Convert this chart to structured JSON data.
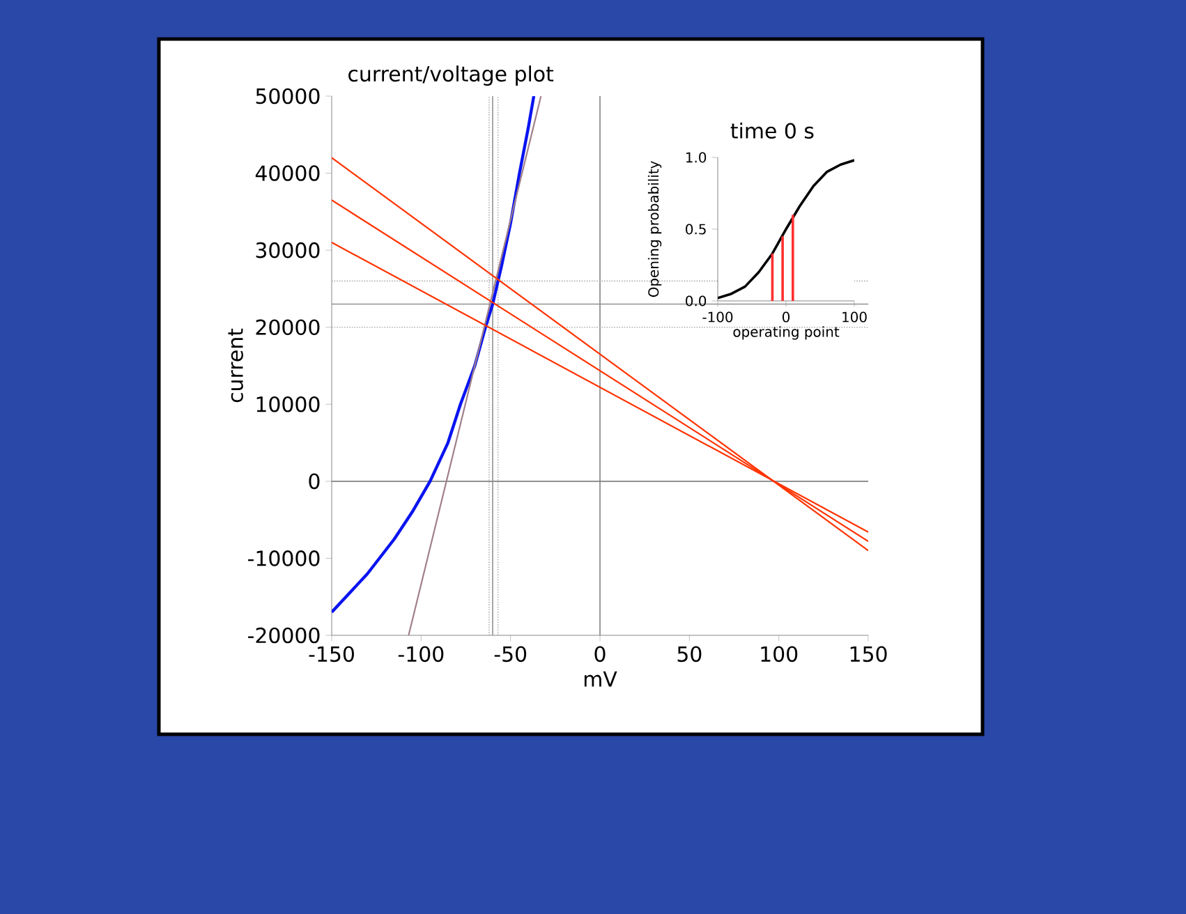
{
  "chart_data": [
    {
      "type": "line",
      "title": "current/voltage plot",
      "xlabel": "mV",
      "ylabel": "current",
      "xlim": [
        -150,
        150
      ],
      "ylim": [
        -20000,
        50000
      ],
      "xticks": [
        -150,
        -100,
        -50,
        0,
        50,
        100,
        150
      ],
      "yticks": [
        -20000,
        -10000,
        0,
        10000,
        20000,
        30000,
        40000,
        50000
      ],
      "series": [
        {
          "color": "#0a14f0",
          "x": [
            -150,
            -130,
            -115,
            -105,
            -95,
            -85,
            -78,
            -70,
            -64,
            -60,
            -55,
            -50,
            -45,
            -40,
            -37
          ],
          "values": [
            -17000,
            -12000,
            -7500,
            -4000,
            0,
            5000,
            10000,
            15000,
            20000,
            23000,
            28000,
            33500,
            40000,
            46000,
            50000
          ]
        },
        {
          "color": "#a08088",
          "x": [
            -107,
            -33
          ],
          "values": [
            -20000,
            50000
          ]
        },
        {
          "color": "#ff3300",
          "x": [
            -150,
            150
          ],
          "values": [
            42000,
            -9000
          ]
        },
        {
          "color": "#ff3300",
          "x": [
            -150,
            150
          ],
          "values": [
            36500,
            -7800
          ]
        },
        {
          "color": "#ff3300",
          "x": [
            -150,
            150
          ],
          "values": [
            31000,
            -6600
          ]
        }
      ],
      "ref_lines": [
        {
          "axis": "x",
          "value": 0,
          "color": "#808080",
          "line_style": "solid"
        },
        {
          "axis": "y",
          "value": 0,
          "color": "#808080",
          "line_style": "solid"
        },
        {
          "axis": "x",
          "value": -60,
          "color": "#909090",
          "line_style": "solid"
        },
        {
          "axis": "y",
          "value": 23000,
          "color": "#909090",
          "line_style": "solid"
        },
        {
          "axis": "x",
          "value": -62,
          "color": "#b0b0b0",
          "line_style": "dotted"
        },
        {
          "axis": "x",
          "value": -57,
          "color": "#b0b0b0",
          "line_style": "dotted"
        },
        {
          "axis": "y",
          "value": 26000,
          "color": "#b0b0b0",
          "line_style": "dotted"
        },
        {
          "axis": "y",
          "value": 20000,
          "color": "#b0b0b0",
          "line_style": "dotted"
        }
      ]
    },
    {
      "type": "line",
      "title": "time 0 s",
      "xlabel": "operating point",
      "ylabel": "Opening probability",
      "xlim": [
        -100,
        100
      ],
      "ylim": [
        0,
        1
      ],
      "xticks": [
        -100,
        0,
        100
      ],
      "yticks": [
        {
          "value": 0,
          "label": "0.0"
        },
        {
          "value": 0.5,
          "label": "0.5"
        },
        {
          "value": 1,
          "label": "1.0"
        }
      ],
      "series": [
        {
          "color": "#000000",
          "x": [
            -100,
            -80,
            -60,
            -40,
            -20,
            0,
            20,
            40,
            60,
            80,
            100
          ],
          "values": [
            0.02,
            0.05,
            0.1,
            0.2,
            0.33,
            0.5,
            0.66,
            0.8,
            0.9,
            0.95,
            0.98
          ]
        },
        {
          "type": "bar",
          "color": "#ff3030",
          "x": [
            -20,
            -5,
            10
          ],
          "values": [
            0.33,
            0.45,
            0.6
          ]
        }
      ]
    }
  ]
}
